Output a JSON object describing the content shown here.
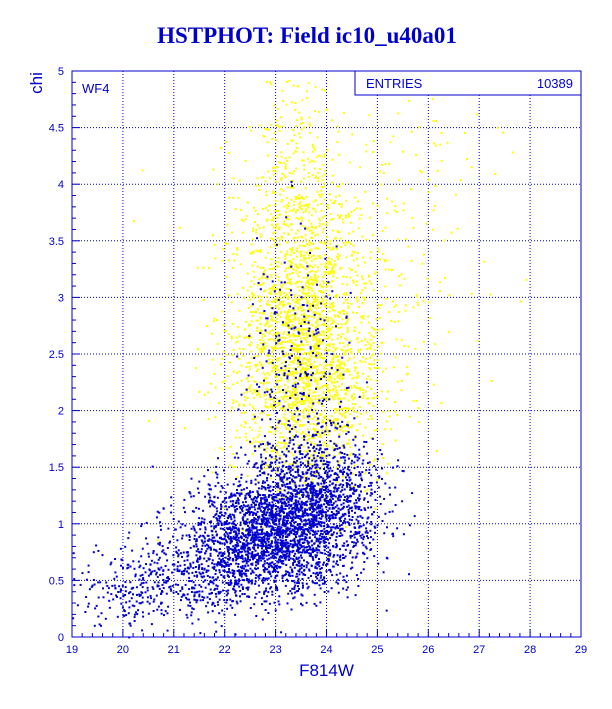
{
  "title": "HSTPHOT: Field ic10_u40a01",
  "chart_data": {
    "type": "scatter",
    "title": "HSTPHOT: Field ic10_u40a01",
    "xlabel": "F814W",
    "ylabel": "chi",
    "xlim": [
      19,
      29
    ],
    "ylim": [
      0,
      5
    ],
    "x_ticks": [
      "19",
      "20",
      "21",
      "22",
      "23",
      "24",
      "25",
      "26",
      "27",
      "28",
      "29"
    ],
    "y_ticks": [
      "0",
      "0.5",
      "1",
      "1.5",
      "2",
      "2.5",
      "3",
      "3.5",
      "4",
      "4.5",
      "5"
    ],
    "grid": true,
    "panel_label": "WF4",
    "stats": {
      "label": "ENTRIES",
      "value": "10389"
    },
    "colors": {
      "background": "#ffffff",
      "axes": "#0000cc",
      "grid": "#0000cc"
    },
    "series": [
      {
        "color": "#ffff00",
        "clusters": [
          {
            "x_center": 23.6,
            "x_spread": 0.75,
            "y_center": 2.4,
            "y_spread": 0.55,
            "count": 1800
          },
          {
            "x_center": 23.4,
            "x_spread": 0.55,
            "y_center": 3.4,
            "y_spread": 0.7,
            "count": 700
          },
          {
            "x_center": 24.5,
            "x_spread": 1.3,
            "y_center": 3.6,
            "y_spread": 0.9,
            "count": 350
          }
        ]
      },
      {
        "color": "#0000cc",
        "clusters": [
          {
            "x_center": 22.8,
            "x_spread": 0.75,
            "y_center": 0.9,
            "y_spread": 0.25,
            "count": 1900
          },
          {
            "x_center": 23.8,
            "x_spread": 0.65,
            "y_center": 1.2,
            "y_spread": 0.3,
            "count": 1200
          },
          {
            "x_center": 21.3,
            "x_spread": 0.9,
            "y_center": 0.55,
            "y_spread": 0.2,
            "count": 450
          },
          {
            "x_center": 23.4,
            "x_spread": 0.5,
            "y_center": 2.2,
            "y_spread": 0.6,
            "count": 300
          },
          {
            "x_center": 20.0,
            "x_spread": 0.6,
            "y_center": 0.4,
            "y_spread": 0.15,
            "count": 120
          }
        ]
      }
    ]
  }
}
